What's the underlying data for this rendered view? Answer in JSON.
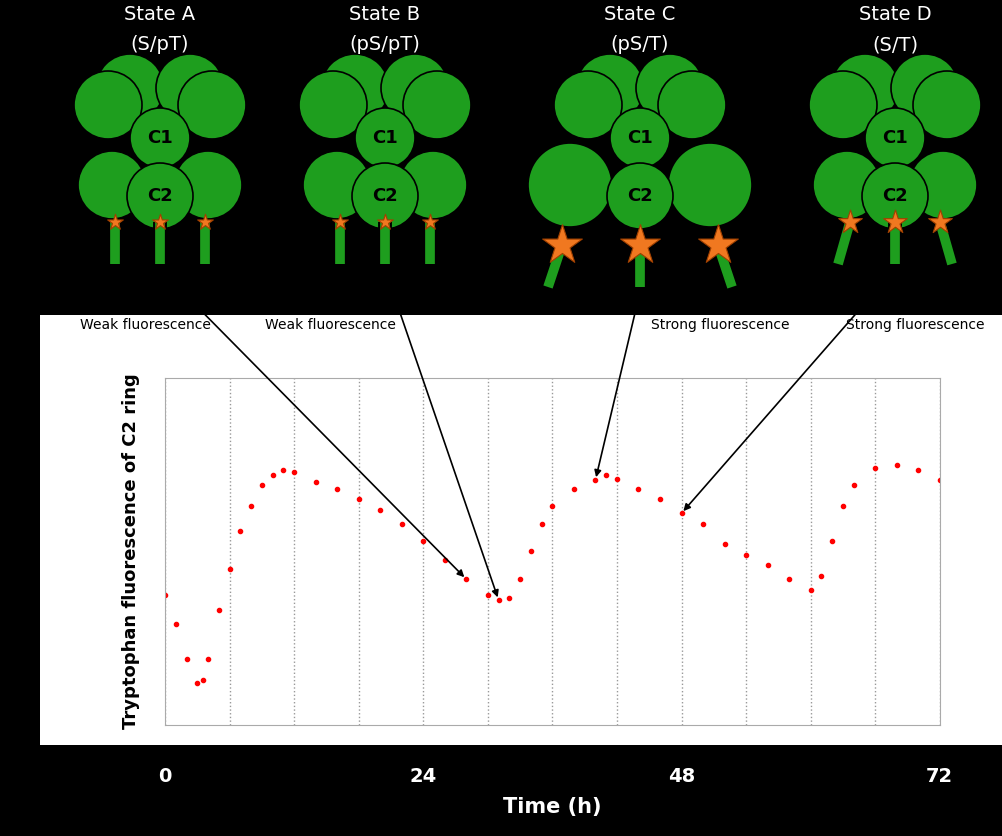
{
  "chart_data": {
    "type": "scatter",
    "x": [
      0,
      1,
      2,
      3,
      3.5,
      4,
      5,
      6,
      7,
      8,
      9,
      10,
      11,
      12,
      14,
      16,
      18,
      20,
      22,
      24,
      26,
      28,
      30,
      31,
      32,
      33,
      34,
      35,
      36,
      38,
      40,
      41,
      42,
      44,
      46,
      48,
      50,
      52,
      54,
      56,
      58,
      60,
      61,
      62,
      63,
      64,
      66,
      68,
      70,
      72
    ],
    "values": [
      37.5,
      29,
      19,
      12,
      13,
      19,
      33,
      45,
      56,
      63,
      69,
      72,
      73.5,
      73,
      70,
      68,
      65,
      62,
      58,
      53,
      47.5,
      42,
      37.5,
      36,
      36.5,
      42,
      50,
      58,
      63,
      68,
      70.6,
      72,
      71,
      68,
      65,
      61,
      58,
      52,
      49,
      46,
      42,
      39,
      43,
      53,
      63,
      69,
      74,
      75,
      73.5,
      70.6
    ],
    "color": "#ff0000",
    "marker": "o",
    "xlabel": "Time (h)",
    "ylabel": "Tryptophan fluorescence of C2 ring",
    "xlim": [
      0,
      72
    ],
    "ylim": [
      0,
      100
    ],
    "xticks": [
      0,
      {
        "value": 6,
        "label": null
      },
      {
        "value": 12,
        "label": null
      },
      {
        "value": 18,
        "label": null
      },
      24,
      {
        "value": 30,
        "label": null
      },
      {
        "value": 36,
        "label": null
      },
      {
        "value": 42,
        "label": null
      },
      48,
      {
        "value": 54,
        "label": null
      },
      {
        "value": 60,
        "label": null
      },
      {
        "value": 66,
        "label": null
      },
      72
    ],
    "yticks": [],
    "grid": true,
    "tick_labels": "x"
  },
  "states": [
    {
      "name": "State A",
      "phospho": "(S/pT)",
      "fluorescence": "Weak fluorescence",
      "time": 28
    },
    {
      "name": "State B",
      "phospho": "(pS/pT)",
      "fluorescence": "Weak fluorescence",
      "time": 31
    },
    {
      "name": "State C",
      "phospho": "(pS/T)",
      "fluorescence": "Strong fluorescence",
      "time": 40
    },
    {
      "name": "State D",
      "phospho": "(S/T)",
      "fluorescence": "Strong fluorescence",
      "time": 48
    }
  ],
  "rings": [
    "C1",
    "C2"
  ]
}
